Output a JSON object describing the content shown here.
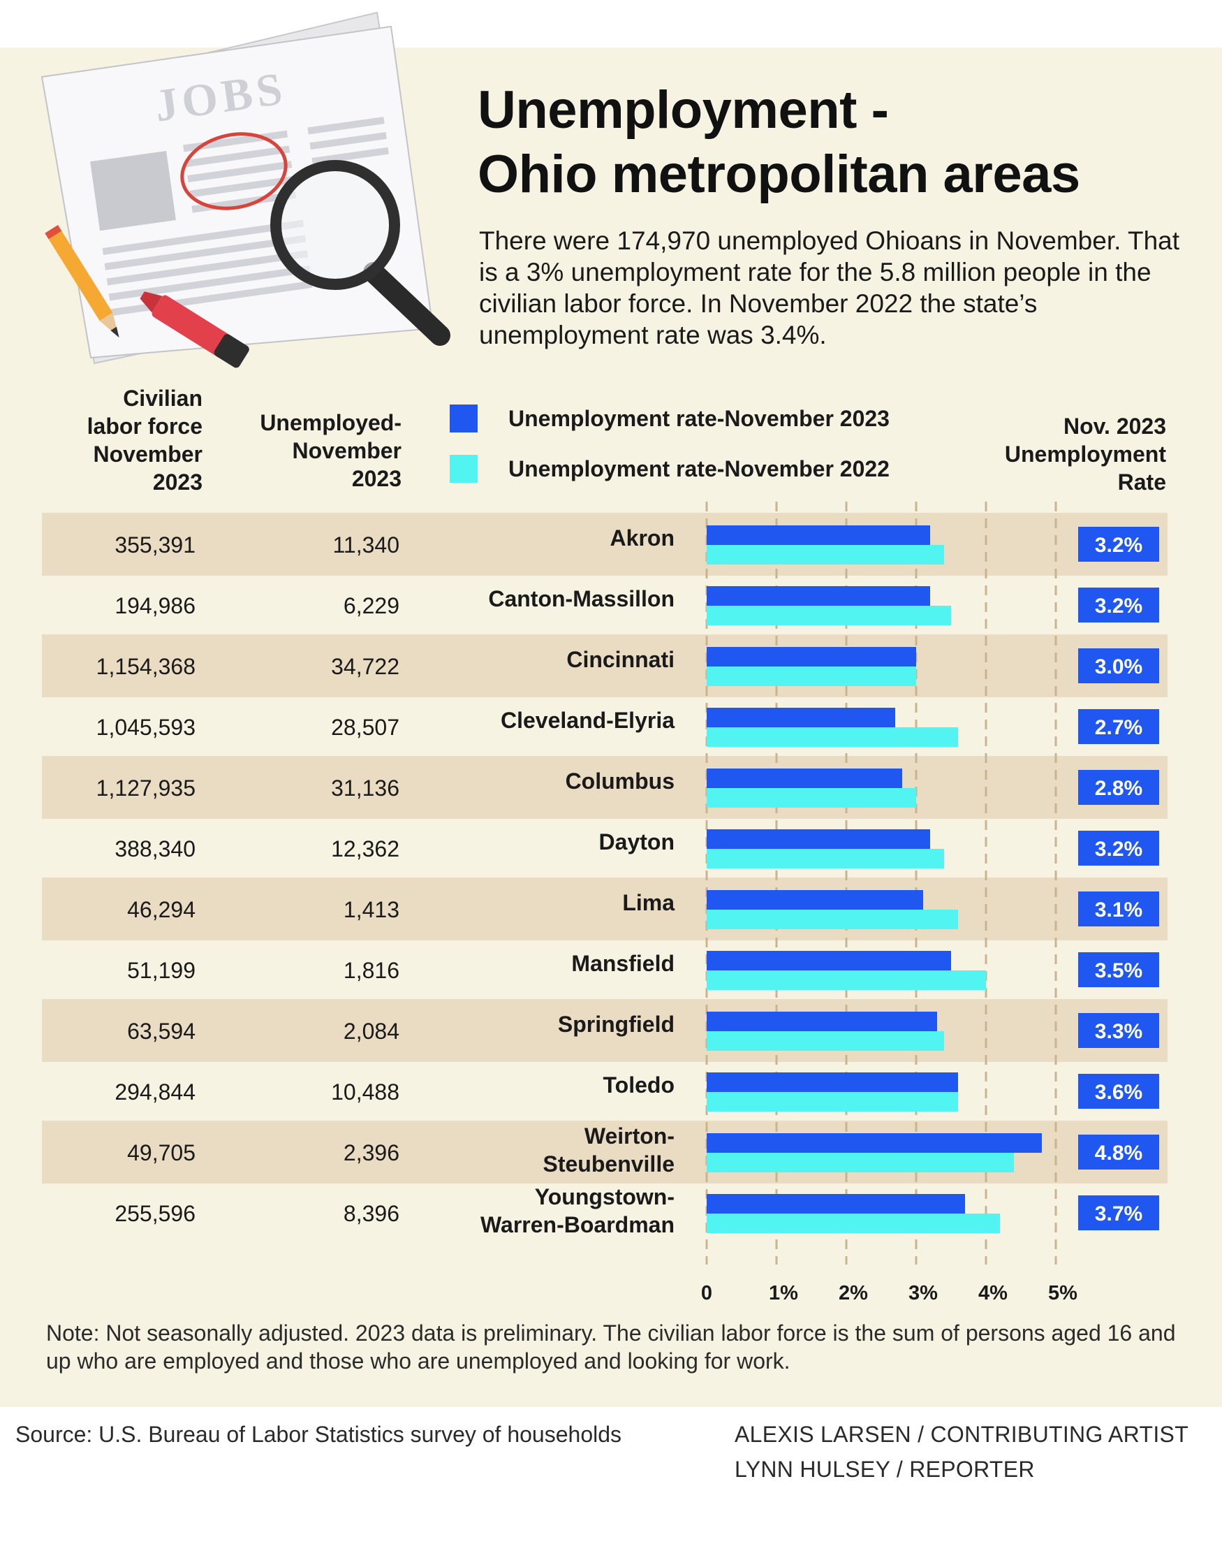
{
  "title": "Unemployment -\nOhio metropolitan areas",
  "intro": "There were 174,970 unemployed Ohioans in November. That is a 3%  unemployment rate for the 5.8 million people in the civilian labor force. In November 2022 the state’s unemployment rate was 3.4%.",
  "columns": {
    "labor_force": "Civilian\nlabor force\nNovember\n2023",
    "unemployed": "Unemployed-\nNovember\n2023",
    "rate": "Nov.  2023\nUnemployment\nRate"
  },
  "illustration": {
    "newspaper_heading": "JOBS"
  },
  "colors": {
    "panel_bg": "#f6f3e3",
    "row_band": "#e9dcc2",
    "series_2023": "#1f57f0",
    "series_2022": "#52f4f2",
    "rate_box": "#1f57f0",
    "gridline": "#c9b48f"
  },
  "chart_data": {
    "type": "bar",
    "orientation": "horizontal",
    "categories": [
      "Akron",
      "Canton-Massillon",
      "Cincinnati",
      "Cleveland-Elyria",
      "Columbus",
      "Dayton",
      "Lima",
      "Mansfield",
      "Springfield",
      "Toledo",
      "Weirton-\nSteubenville",
      "Youngstown-\nWarren-Boardman"
    ],
    "series": [
      {
        "name": "Unemployment rate-November 2023",
        "color": "#1f57f0",
        "values": [
          3.2,
          3.2,
          3.0,
          2.7,
          2.8,
          3.2,
          3.1,
          3.5,
          3.3,
          3.6,
          4.8,
          3.7
        ]
      },
      {
        "name": "Unemployment rate-November 2022",
        "color": "#52f4f2",
        "values": [
          3.4,
          3.5,
          3.0,
          3.6,
          3.0,
          3.4,
          3.6,
          4.0,
          3.4,
          3.6,
          4.4,
          4.2
        ]
      }
    ],
    "xlim": [
      0,
      5
    ],
    "x_ticks": [
      "0",
      "1%",
      "2%",
      "3%",
      "4%",
      "5%"
    ],
    "labor_force": [
      "355,391",
      "194,986",
      "1,154,368",
      "1,045,593",
      "1,127,935",
      "388,340",
      "46,294",
      "51,199",
      "63,594",
      "294,844",
      "49,705",
      "255,596"
    ],
    "unemployed": [
      "11,340",
      "6,229",
      "34,722",
      "28,507",
      "31,136",
      "12,362",
      "1,413",
      "1,816",
      "2,084",
      "10,488",
      "2,396",
      "8,396"
    ],
    "rate_labels": [
      "3.2%",
      "3.2%",
      "3.0%",
      "2.7%",
      "2.8%",
      "3.2%",
      "3.1%",
      "3.5%",
      "3.3%",
      "3.6%",
      "4.8%",
      "3.7%"
    ],
    "grid": true,
    "legend_position": "top"
  },
  "note": "Note: Not seasonally adjusted. 2023 data is preliminary. The civilian labor force is the sum of persons aged 16 and up who are employed and those who are unemployed and looking for work.",
  "source": "Source: U.S. Bureau of Labor Statistics survey of households",
  "credits": [
    "ALEXIS LARSEN / CONTRIBUTING ARTIST",
    "LYNN HULSEY / REPORTER"
  ]
}
